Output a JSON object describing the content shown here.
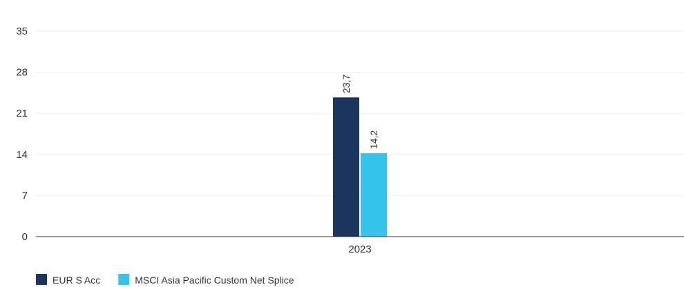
{
  "chart_data": {
    "type": "bar",
    "categories": [
      "2023"
    ],
    "series": [
      {
        "name": "EUR S Acc",
        "values": [
          23.7
        ],
        "labels": [
          "23,7"
        ],
        "color": "#1b365d"
      },
      {
        "name": "MSCI Asia Pacific Custom Net Splice",
        "values": [
          14.2
        ],
        "labels": [
          "14,2"
        ],
        "color": "#36c5ea"
      }
    ],
    "title": "",
    "xlabel": "",
    "ylabel": "",
    "ylim": [
      0,
      35
    ],
    "yticks": [
      0,
      7,
      14,
      21,
      28,
      35
    ],
    "grid": true,
    "legend_position": "bottom-left",
    "gridline_color": "#ebebeb",
    "axis_color": "#333333"
  }
}
